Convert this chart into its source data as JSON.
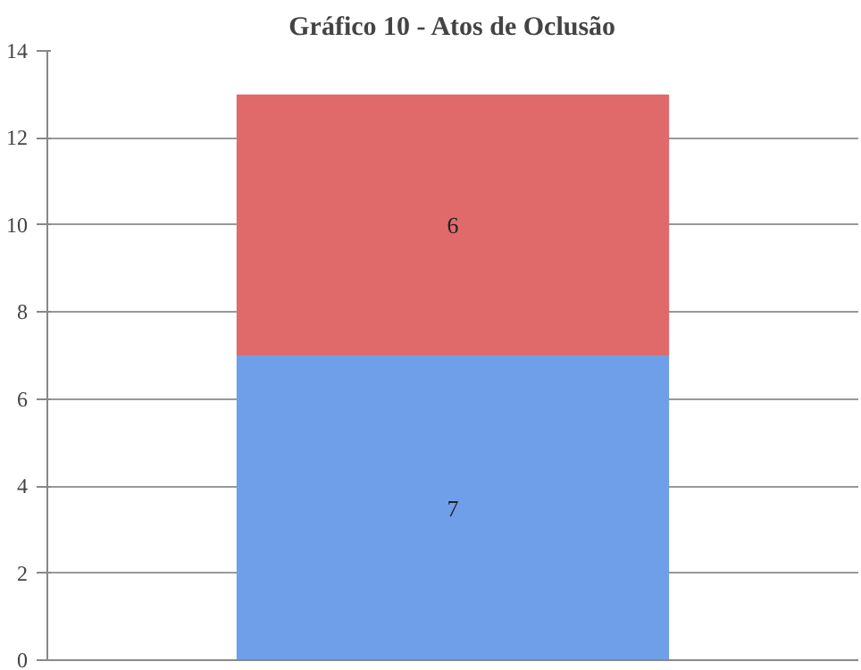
{
  "chart_data": {
    "type": "bar",
    "title": "Gráfico 10 - Atos de Oclusão",
    "categories": [
      null
    ],
    "stacked": true,
    "data_labels": true,
    "series": [
      {
        "color": "#6f9fe9",
        "values": [
          7
        ]
      },
      {
        "color": "#e06a6a",
        "values": [
          6
        ]
      }
    ],
    "ylim": [
      0,
      14
    ],
    "yticks": [
      0,
      2,
      4,
      6,
      8,
      10,
      12,
      14
    ],
    "grid": "y"
  }
}
